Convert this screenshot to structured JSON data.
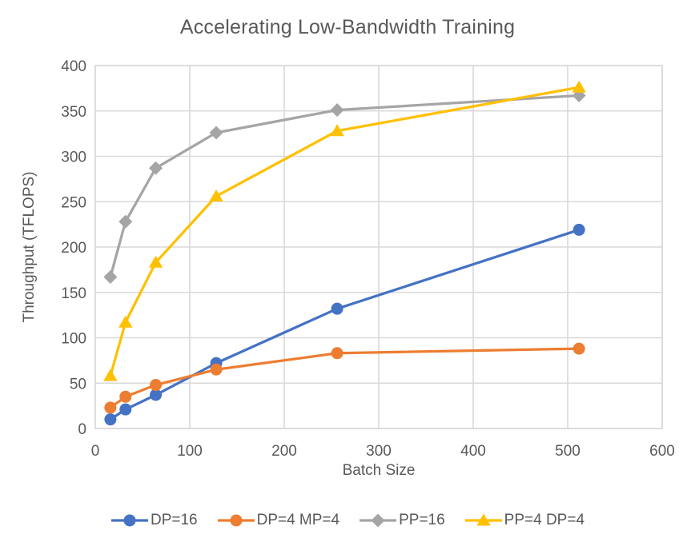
{
  "title": "Accelerating Low-Bandwidth Training",
  "chart_data": {
    "type": "line",
    "title": "Accelerating Low-Bandwidth Training",
    "xlabel": "Batch Size",
    "ylabel": "Throughput (TFLOPS)",
    "x": [
      16,
      32,
      64,
      128,
      256,
      512
    ],
    "series": [
      {
        "name": "DP=16",
        "color": "#4472C4",
        "marker": "circle",
        "values": [
          10,
          21,
          37,
          72,
          132,
          219
        ]
      },
      {
        "name": "DP=4 MP=4",
        "color": "#ED7D31",
        "marker": "circle",
        "values": [
          23,
          35,
          48,
          65,
          83,
          88
        ]
      },
      {
        "name": "PP=16",
        "color": "#A5A5A5",
        "marker": "diamond",
        "values": [
          167,
          228,
          287,
          326,
          351,
          367
        ]
      },
      {
        "name": "PP=4 DP=4",
        "color": "#FFC000",
        "marker": "triangle",
        "values": [
          58,
          117,
          183,
          256,
          328,
          376
        ]
      }
    ],
    "xlim": [
      0,
      600
    ],
    "ylim": [
      0,
      400
    ],
    "x_ticks": [
      0,
      100,
      200,
      300,
      400,
      500,
      600
    ],
    "y_ticks": [
      0,
      50,
      100,
      150,
      200,
      250,
      300,
      350,
      400
    ],
    "grid": true,
    "legend_position": "bottom",
    "colors": {
      "grid": "#D9D9D9",
      "text": "#595959",
      "background": "#FFFFFF"
    }
  }
}
